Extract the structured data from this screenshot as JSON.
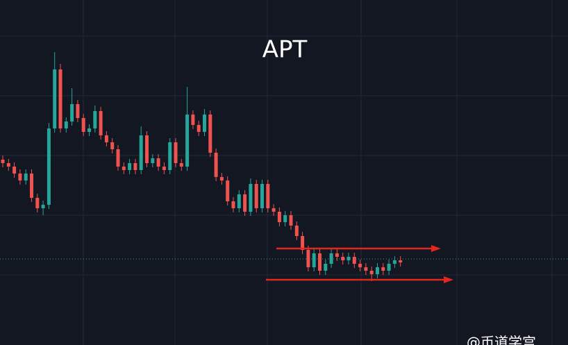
{
  "chart_data": {
    "type": "candlestick",
    "title": "APT",
    "watermark": "@币道学宫",
    "ylim": [
      0,
      497
    ],
    "up_color": "#26a69a",
    "down_color": "#ef5350",
    "open": [
      267,
      262,
      257,
      247,
      237,
      247,
      212,
      197,
      202,
      312,
      397,
      312,
      322,
      347,
      327,
      307,
      312,
      337,
      302,
      292,
      282,
      257,
      252,
      262,
      252,
      302,
      262,
      269,
      257,
      252,
      292,
      262,
      257,
      332,
      317,
      307,
      332,
      277,
      242,
      237,
      207,
      197,
      217,
      192,
      232,
      197,
      232,
      197,
      192,
      177,
      187,
      172,
      157,
      137,
      112,
      132,
      107,
      117,
      132,
      127,
      122,
      127,
      117,
      112,
      107,
      102,
      112,
      107,
      117,
      122
    ],
    "high": [
      273,
      268,
      263,
      253,
      253,
      253,
      218,
      208,
      320,
      422,
      405,
      328,
      370,
      353,
      333,
      318,
      345,
      343,
      308,
      298,
      288,
      263,
      268,
      268,
      315,
      308,
      275,
      275,
      263,
      298,
      298,
      268,
      372,
      338,
      323,
      340,
      338,
      283,
      248,
      243,
      213,
      223,
      223,
      240,
      238,
      238,
      238,
      203,
      198,
      193,
      193,
      178,
      163,
      143,
      138,
      138,
      123,
      138,
      138,
      133,
      133,
      133,
      123,
      118,
      113,
      118,
      118,
      123,
      128,
      128
    ],
    "low": [
      256,
      251,
      241,
      231,
      231,
      206,
      191,
      187,
      196,
      306,
      306,
      306,
      316,
      321,
      301,
      301,
      306,
      296,
      286,
      276,
      251,
      246,
      246,
      246,
      246,
      256,
      256,
      251,
      246,
      246,
      256,
      251,
      251,
      311,
      301,
      301,
      271,
      236,
      231,
      201,
      191,
      191,
      186,
      186,
      191,
      191,
      191,
      186,
      171,
      171,
      166,
      151,
      131,
      106,
      106,
      101,
      101,
      111,
      121,
      116,
      116,
      111,
      106,
      101,
      92,
      96,
      101,
      101,
      111,
      113
    ],
    "close": [
      262,
      257,
      247,
      237,
      247,
      212,
      197,
      202,
      312,
      397,
      312,
      322,
      347,
      327,
      307,
      312,
      337,
      302,
      292,
      282,
      257,
      252,
      262,
      252,
      302,
      262,
      269,
      257,
      252,
      292,
      262,
      257,
      332,
      317,
      307,
      332,
      277,
      242,
      237,
      207,
      197,
      217,
      192,
      232,
      197,
      232,
      197,
      192,
      177,
      187,
      172,
      157,
      137,
      112,
      132,
      107,
      117,
      132,
      127,
      122,
      127,
      117,
      112,
      107,
      102,
      112,
      107,
      117,
      122,
      119
    ],
    "price_line": 124,
    "levels": [
      139,
      94
    ],
    "level_color": "#e5261f"
  }
}
